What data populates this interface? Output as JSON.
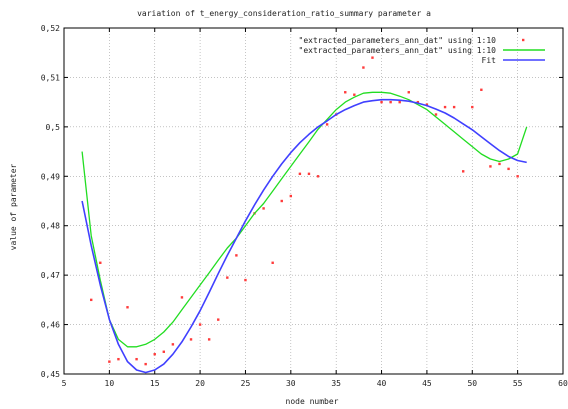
{
  "chart_data": {
    "type": "scatter",
    "title": "variation of t_energy_consideration_ratio_summary parameter a",
    "xlabel": "node number",
    "ylabel": "value of parameter",
    "xlim": [
      5,
      60
    ],
    "ylim": [
      0.45,
      0.52
    ],
    "xticks": [
      "5",
      "10",
      "15",
      "20",
      "25",
      "30",
      "35",
      "40",
      "45",
      "50",
      "55",
      "60"
    ],
    "yticks": [
      "0,45",
      "0,46",
      "0,47",
      "0,48",
      "0,49",
      "0,5",
      "0,51",
      "0,52"
    ],
    "grid": true,
    "legend_position": "top-right",
    "series": [
      {
        "name": "\"extracted_parameters_ann_dat\" using 1:10",
        "kind": "points",
        "color": "#ff3b3b",
        "x": [
          8,
          9,
          10,
          11,
          12,
          13,
          14,
          15,
          16,
          17,
          18,
          19,
          20,
          21,
          22,
          23,
          24,
          25,
          26,
          27,
          28,
          29,
          30,
          31,
          32,
          33,
          34,
          35,
          36,
          37,
          38,
          39,
          40,
          41,
          42,
          43,
          44,
          45,
          46,
          47,
          48,
          49,
          50,
          51,
          52,
          53,
          54,
          55
        ],
        "y": [
          0.465,
          0.4725,
          0.4525,
          0.453,
          0.4635,
          0.453,
          0.452,
          0.454,
          0.4545,
          0.456,
          0.4655,
          0.457,
          0.46,
          0.457,
          0.461,
          0.4695,
          0.474,
          0.469,
          0.4825,
          0.4835,
          0.4725,
          0.485,
          0.486,
          0.4905,
          0.4905,
          0.49,
          0.5005,
          0.5025,
          0.507,
          0.5065,
          0.512,
          0.514,
          0.505,
          0.505,
          0.505,
          0.507,
          0.505,
          0.5045,
          0.5025,
          0.504,
          0.504,
          0.491,
          0.504,
          0.5075,
          0.492,
          0.4925,
          0.4915,
          0.49
        ]
      },
      {
        "name": "\"extracted_parameters_ann_dat\" using 1:10",
        "kind": "line",
        "color": "#22dd22",
        "x": [
          7,
          8,
          9,
          10,
          11,
          12,
          13,
          14,
          15,
          16,
          17,
          18,
          19,
          20,
          21,
          22,
          23,
          24,
          25,
          26,
          27,
          28,
          29,
          30,
          31,
          32,
          33,
          34,
          35,
          36,
          37,
          38,
          39,
          40,
          41,
          42,
          43,
          44,
          45,
          46,
          47,
          48,
          49,
          50,
          51,
          52,
          53,
          54,
          55,
          56
        ],
        "y": [
          0.495,
          0.478,
          0.469,
          0.461,
          0.457,
          0.4555,
          0.4555,
          0.456,
          0.457,
          0.4585,
          0.4605,
          0.463,
          0.4655,
          0.468,
          0.4705,
          0.473,
          0.4755,
          0.4775,
          0.48,
          0.4825,
          0.4845,
          0.487,
          0.4895,
          0.492,
          0.4945,
          0.497,
          0.4995,
          0.5015,
          0.5035,
          0.505,
          0.506,
          0.5068,
          0.507,
          0.507,
          0.5068,
          0.5062,
          0.5055,
          0.5045,
          0.5035,
          0.502,
          0.5005,
          0.499,
          0.4975,
          0.496,
          0.4945,
          0.4935,
          0.493,
          0.4935,
          0.4945,
          0.5
        ]
      },
      {
        "name": "Fit",
        "kind": "line",
        "color": "#4040ff",
        "x": [
          7,
          8,
          9,
          10,
          11,
          12,
          13,
          14,
          15,
          16,
          17,
          18,
          19,
          20,
          21,
          22,
          23,
          24,
          25,
          26,
          27,
          28,
          29,
          30,
          31,
          32,
          33,
          34,
          35,
          36,
          37,
          38,
          39,
          40,
          41,
          42,
          43,
          44,
          45,
          46,
          47,
          48,
          49,
          50,
          51,
          52,
          53,
          54,
          55,
          56
        ],
        "y": [
          0.485,
          0.476,
          0.468,
          0.461,
          0.456,
          0.4525,
          0.4508,
          0.4503,
          0.4508,
          0.452,
          0.454,
          0.4565,
          0.4595,
          0.4628,
          0.4665,
          0.4703,
          0.474,
          0.4775,
          0.481,
          0.4842,
          0.4872,
          0.49,
          0.4925,
          0.4948,
          0.4968,
          0.4985,
          0.5,
          0.5012,
          0.5025,
          0.5035,
          0.5043,
          0.505,
          0.5053,
          0.5055,
          0.5055,
          0.5054,
          0.5052,
          0.5048,
          0.5043,
          0.5036,
          0.5028,
          0.5018,
          0.5006,
          0.4994,
          0.498,
          0.4966,
          0.4952,
          0.494,
          0.4932,
          0.4928
        ]
      }
    ]
  }
}
